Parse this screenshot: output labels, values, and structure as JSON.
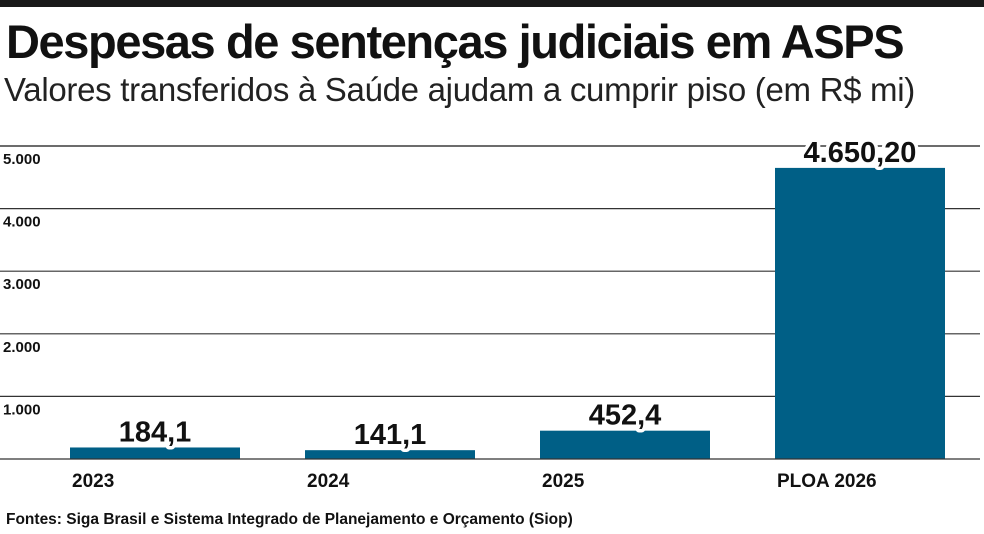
{
  "title": "Despesas de sentenças judiciais em ASPS",
  "subtitle": "Valores transferidos à Saúde ajudam a cumprir piso (em R$ mi)",
  "source": "Fontes: Siga Brasil e Sistema Integrado de Planejamento e Orçamento (Siop)",
  "colors": {
    "bar": "#005f86",
    "grid": "#333333",
    "rule": "#1a1a1a"
  },
  "chart_data": {
    "type": "bar",
    "categories": [
      "2023",
      "2024",
      "2025",
      "PLOA 2026"
    ],
    "values": [
      184.1,
      141.1,
      452.4,
      4650.2
    ],
    "value_labels": [
      "184,1",
      "141,1",
      "452,4",
      "4.650,20"
    ],
    "yticks": [
      1000,
      2000,
      3000,
      4000,
      5000
    ],
    "ytick_labels": [
      "1.000",
      "2.000",
      "3.000",
      "4.000",
      "5.000"
    ],
    "ylim": [
      0,
      5000
    ],
    "grid": true,
    "xlabel": "",
    "ylabel": ""
  }
}
